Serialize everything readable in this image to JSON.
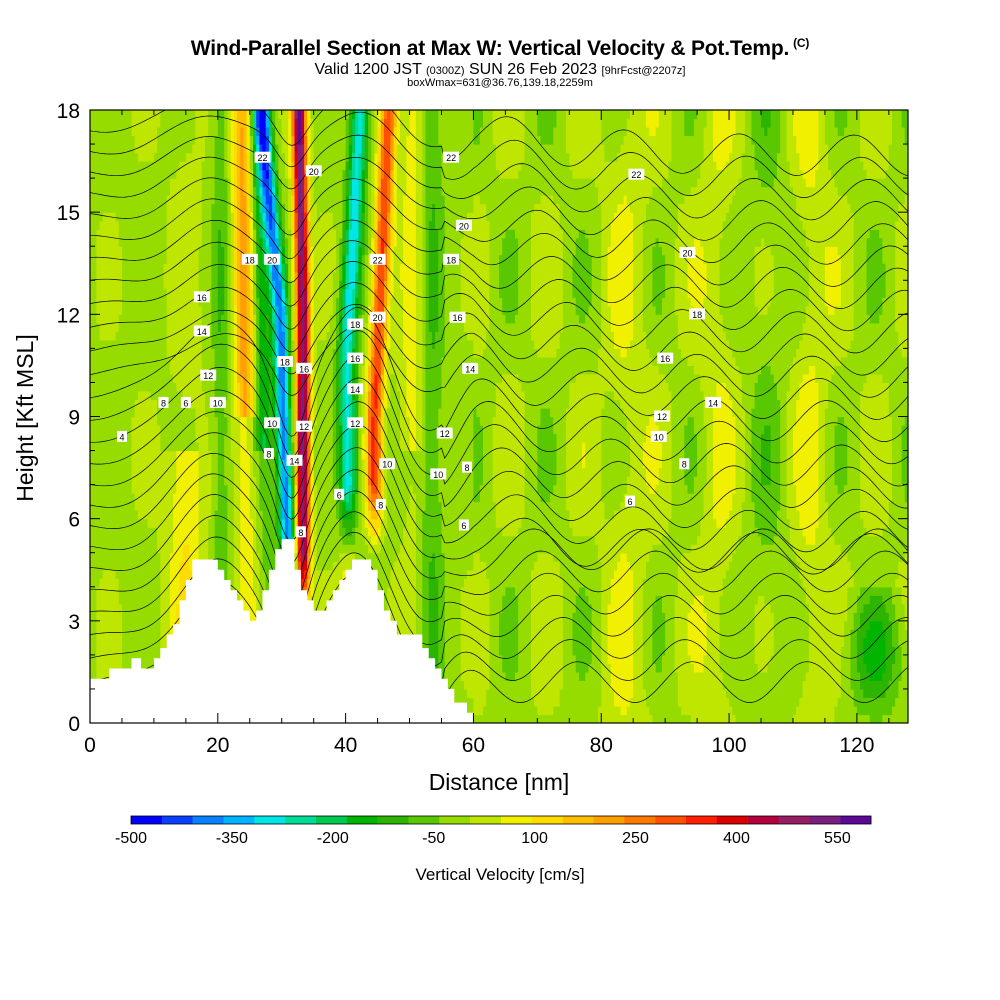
{
  "header": {
    "title": "Wind-Parallel Section at Max W: Vertical Velocity & Pot.Temp.",
    "copyright": "(C)",
    "valid_a": "Valid 1200 JST",
    "valid_small": "(0300Z)",
    "valid_b": "SUN 26 Feb 2023",
    "valid_fcst": "[9hrFcst@2207z]",
    "box_info": "boxWmax=631@36.76,139.18,2259m"
  },
  "chart_data": {
    "type": "heatmap",
    "xlabel": "Distance [nm]",
    "ylabel": "Height [Kft MSL]",
    "xlim": [
      0,
      128
    ],
    "ylim": [
      0,
      18
    ],
    "x_ticks": [
      "0",
      "20",
      "40",
      "60",
      "80",
      "100",
      "120"
    ],
    "y_ticks": [
      "0",
      "3",
      "6",
      "9",
      "12",
      "15",
      "18"
    ],
    "colorbar": {
      "title": "Vertical Velocity [cm/s]",
      "min": -500,
      "max": 600,
      "step": 50,
      "tick_labels": [
        "-500",
        "-350",
        "-200",
        "-50",
        "100",
        "250",
        "400",
        "550"
      ],
      "colors": [
        "#0000ff",
        "#0a40ff",
        "#0880ff",
        "#00b4ff",
        "#00e6e6",
        "#00dc96",
        "#00c850",
        "#00b400",
        "#2db400",
        "#5ac800",
        "#96dc00",
        "#bee600",
        "#f0f000",
        "#ffdc00",
        "#ffbe00",
        "#ffa000",
        "#ff7800",
        "#ff5000",
        "#ff1e00",
        "#dc0000",
        "#b4003c",
        "#961e64",
        "#7a1e80",
        "#5a0a96"
      ]
    },
    "contours": {
      "field": "Potential Temperature",
      "labels": [
        {
          "text": "4",
          "x": 5,
          "y": 8.4
        },
        {
          "text": "6",
          "x": 15,
          "y": 9.4
        },
        {
          "text": "8",
          "x": 11.5,
          "y": 9.4
        },
        {
          "text": "10",
          "x": 20,
          "y": 9.4
        },
        {
          "text": "12",
          "x": 18.5,
          "y": 10.2
        },
        {
          "text": "14",
          "x": 17.5,
          "y": 11.5
        },
        {
          "text": "16",
          "x": 17.5,
          "y": 12.5
        },
        {
          "text": "18",
          "x": 25,
          "y": 13.6
        },
        {
          "text": "20",
          "x": 28.5,
          "y": 13.6
        },
        {
          "text": "22",
          "x": 27,
          "y": 16.6
        },
        {
          "text": "8",
          "x": 28,
          "y": 7.9
        },
        {
          "text": "10",
          "x": 28.5,
          "y": 8.8
        },
        {
          "text": "18",
          "x": 30.5,
          "y": 10.6
        },
        {
          "text": "14",
          "x": 32,
          "y": 7.7
        },
        {
          "text": "12",
          "x": 33.5,
          "y": 8.7
        },
        {
          "text": "16",
          "x": 33.5,
          "y": 10.4
        },
        {
          "text": "8",
          "x": 33,
          "y": 5.6
        },
        {
          "text": "20",
          "x": 35,
          "y": 16.2
        },
        {
          "text": "6",
          "x": 39,
          "y": 6.7
        },
        {
          "text": "22",
          "x": 45,
          "y": 13.6
        },
        {
          "text": "18",
          "x": 41.5,
          "y": 11.7
        },
        {
          "text": "20",
          "x": 45,
          "y": 11.9
        },
        {
          "text": "16",
          "x": 41.5,
          "y": 10.7
        },
        {
          "text": "14",
          "x": 41.5,
          "y": 9.8
        },
        {
          "text": "12",
          "x": 41.5,
          "y": 8.8
        },
        {
          "text": "10",
          "x": 46.5,
          "y": 7.6
        },
        {
          "text": "8",
          "x": 45.5,
          "y": 6.4
        },
        {
          "text": "22",
          "x": 56.5,
          "y": 16.6
        },
        {
          "text": "20",
          "x": 58.5,
          "y": 14.6
        },
        {
          "text": "18",
          "x": 56.5,
          "y": 13.6
        },
        {
          "text": "16",
          "x": 57.5,
          "y": 11.9
        },
        {
          "text": "14",
          "x": 59.5,
          "y": 10.4
        },
        {
          "text": "12",
          "x": 55.5,
          "y": 8.5
        },
        {
          "text": "10",
          "x": 54.5,
          "y": 7.3
        },
        {
          "text": "8",
          "x": 59,
          "y": 7.5
        },
        {
          "text": "6",
          "x": 58.5,
          "y": 5.8
        },
        {
          "text": "22",
          "x": 85.5,
          "y": 16.1
        },
        {
          "text": "20",
          "x": 93.5,
          "y": 13.8
        },
        {
          "text": "18",
          "x": 95,
          "y": 12.0
        },
        {
          "text": "16",
          "x": 90,
          "y": 10.7
        },
        {
          "text": "14",
          "x": 97.5,
          "y": 9.4
        },
        {
          "text": "12",
          "x": 89.5,
          "y": 9.0
        },
        {
          "text": "10",
          "x": 89,
          "y": 8.4
        },
        {
          "text": "8",
          "x": 93,
          "y": 7.6
        },
        {
          "text": "6",
          "x": 84.5,
          "y": 6.5
        }
      ]
    },
    "terrain_profile": [
      [
        0,
        1.3
      ],
      [
        3,
        1.3
      ],
      [
        3,
        1.6
      ],
      [
        6.5,
        1.6
      ],
      [
        6.5,
        1.9
      ],
      [
        8,
        1.9
      ],
      [
        8,
        1.6
      ],
      [
        10,
        1.6
      ],
      [
        10,
        1.9
      ],
      [
        11,
        1.9
      ],
      [
        11,
        2.2
      ],
      [
        12,
        2.2
      ],
      [
        12,
        2.6
      ],
      [
        13,
        2.6
      ],
      [
        13,
        2.9
      ],
      [
        14,
        2.9
      ],
      [
        14,
        3.6
      ],
      [
        15,
        3.6
      ],
      [
        15,
        4.2
      ],
      [
        16,
        4.2
      ],
      [
        16,
        4.8
      ],
      [
        20,
        4.8
      ],
      [
        20,
        4.5
      ],
      [
        21,
        4.5
      ],
      [
        21,
        4.2
      ],
      [
        22,
        4.2
      ],
      [
        22,
        3.9
      ],
      [
        23,
        3.9
      ],
      [
        23,
        3.6
      ],
      [
        24,
        3.6
      ],
      [
        24,
        3.3
      ],
      [
        25,
        3.3
      ],
      [
        25,
        3.0
      ],
      [
        26,
        3.0
      ],
      [
        26,
        3.3
      ],
      [
        27,
        3.3
      ],
      [
        27,
        3.9
      ],
      [
        28,
        3.9
      ],
      [
        28,
        4.5
      ],
      [
        29,
        4.5
      ],
      [
        29,
        5.1
      ],
      [
        30,
        5.1
      ],
      [
        30,
        5.4
      ],
      [
        32,
        5.4
      ],
      [
        32,
        4.5
      ],
      [
        33,
        4.5
      ],
      [
        33,
        3.9
      ],
      [
        34,
        3.9
      ],
      [
        34,
        3.6
      ],
      [
        35,
        3.6
      ],
      [
        35,
        3.3
      ],
      [
        37,
        3.3
      ],
      [
        37,
        3.6
      ],
      [
        38,
        3.6
      ],
      [
        38,
        3.9
      ],
      [
        39,
        3.9
      ],
      [
        39,
        4.2
      ],
      [
        40,
        4.2
      ],
      [
        40,
        4.5
      ],
      [
        41,
        4.5
      ],
      [
        41,
        4.8
      ],
      [
        44,
        4.8
      ],
      [
        44,
        4.5
      ],
      [
        45,
        4.5
      ],
      [
        45,
        3.9
      ],
      [
        46,
        3.9
      ],
      [
        46,
        3.3
      ],
      [
        47,
        3.3
      ],
      [
        47,
        3.0
      ],
      [
        48,
        3.0
      ],
      [
        48,
        2.6
      ],
      [
        52,
        2.6
      ],
      [
        52,
        2.2
      ],
      [
        53,
        2.2
      ],
      [
        53,
        1.9
      ],
      [
        54,
        1.9
      ],
      [
        54,
        1.6
      ],
      [
        55,
        1.6
      ],
      [
        55,
        1.3
      ],
      [
        56,
        1.3
      ],
      [
        56,
        1.0
      ],
      [
        57,
        1.0
      ],
      [
        57,
        0.6
      ],
      [
        59,
        0.6
      ],
      [
        59,
        0.3
      ],
      [
        60,
        0.3
      ],
      [
        60,
        0
      ],
      [
        0,
        0
      ]
    ]
  }
}
